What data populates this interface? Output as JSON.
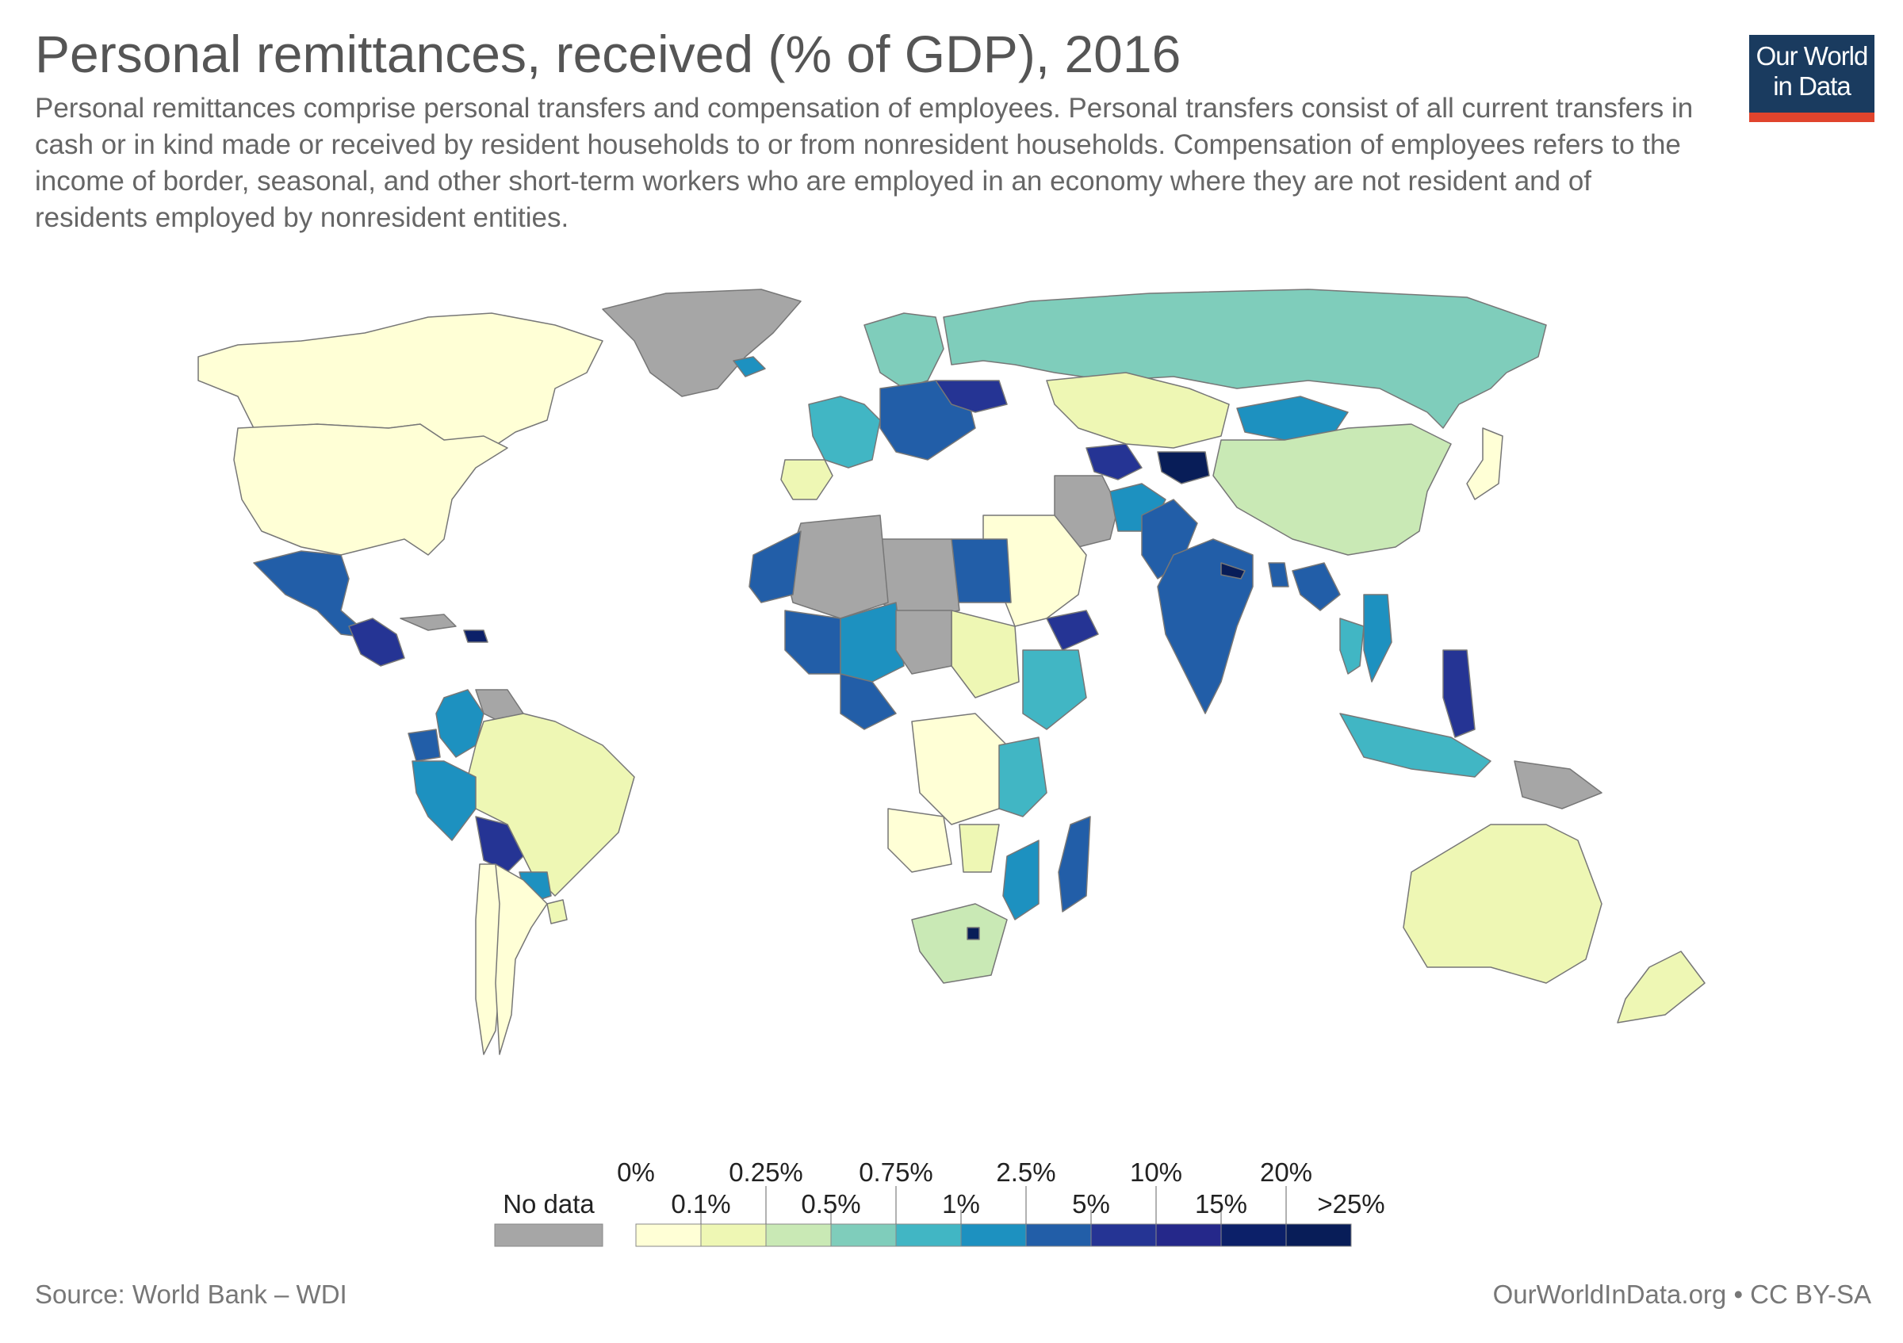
{
  "header": {
    "title": "Personal remittances, received (% of GDP), 2016",
    "subtitle": "Personal remittances comprise personal transfers and compensation of employees. Personal transfers consist of all current transfers in cash or in kind made or received by resident households to or from nonresident households. Compensation of employees refers to the income of border, seasonal, and other short-term workers who are employed in an economy where they are not resident and of residents employed by nonresident entities."
  },
  "logo": {
    "line1": "Our World",
    "line2": "in Data"
  },
  "legend": {
    "no_data_label": "No data",
    "no_data_color": "#a6a6a6",
    "top_labels": [
      "0%",
      "0.25%",
      "0.75%",
      "2.5%",
      "10%",
      "20%"
    ],
    "bottom_labels": [
      "0.1%",
      "0.5%",
      "1%",
      "5%",
      "15%",
      ">25%"
    ],
    "bins": [
      {
        "range": "0–0.1%",
        "color": "#ffffd6"
      },
      {
        "range": "0.1–0.25%",
        "color": "#eef7b4"
      },
      {
        "range": "0.25–0.5%",
        "color": "#c9e9b5"
      },
      {
        "range": "0.5–0.75%",
        "color": "#7fcdbb"
      },
      {
        "range": "0.75–1%",
        "color": "#41b6c4"
      },
      {
        "range": "1–2.5%",
        "color": "#1d91c0"
      },
      {
        "range": "2.5–5%",
        "color": "#225ea8"
      },
      {
        "range": "5–10%",
        "color": "#253494"
      },
      {
        "range": "10–15%",
        "color": "#25288a"
      },
      {
        "range": "15–20%",
        "color": "#0c2069"
      },
      {
        "range": "20–25%+",
        "color": "#081d58"
      }
    ]
  },
  "footer": {
    "source": "Source: World Bank – WDI",
    "credit": "OurWorldInData.org • CC BY-SA"
  },
  "map_regions": [
    {
      "name": "Canada",
      "color": "#ffffd6"
    },
    {
      "name": "United States",
      "color": "#ffffd6"
    },
    {
      "name": "Greenland",
      "color": "#a6a6a6"
    },
    {
      "name": "Mexico",
      "color": "#225ea8"
    },
    {
      "name": "Central America",
      "color": "#253494"
    },
    {
      "name": "Cuba",
      "color": "#a6a6a6"
    },
    {
      "name": "Haiti",
      "color": "#0c2069"
    },
    {
      "name": "Colombia",
      "color": "#1d91c0"
    },
    {
      "name": "Venezuela",
      "color": "#a6a6a6"
    },
    {
      "name": "Brazil",
      "color": "#eef7b4"
    },
    {
      "name": "Peru",
      "color": "#1d91c0"
    },
    {
      "name": "Ecuador",
      "color": "#225ea8"
    },
    {
      "name": "Bolivia",
      "color": "#253494"
    },
    {
      "name": "Paraguay",
      "color": "#1d91c0"
    },
    {
      "name": "Chile",
      "color": "#ffffd6"
    },
    {
      "name": "Argentina",
      "color": "#ffffd6"
    },
    {
      "name": "Uruguay",
      "color": "#eef7b4"
    },
    {
      "name": "Iceland",
      "color": "#1d91c0"
    },
    {
      "name": "Scandinavia",
      "color": "#7fcdbb"
    },
    {
      "name": "Russia",
      "color": "#7fcdbb"
    },
    {
      "name": "Western Europe",
      "color": "#41b6c4"
    },
    {
      "name": "Iberia",
      "color": "#eef7b4"
    },
    {
      "name": "Eastern Europe",
      "color": "#225ea8"
    },
    {
      "name": "Ukraine",
      "color": "#253494"
    },
    {
      "name": "Kazakhstan",
      "color": "#eef7b4"
    },
    {
      "name": "Mongolia",
      "color": "#1d91c0"
    },
    {
      "name": "China",
      "color": "#c9e9b5"
    },
    {
      "name": "Japan",
      "color": "#ffffd6"
    },
    {
      "name": "Central Asia",
      "color": "#253494"
    },
    {
      "name": "Tajikistan/Kyrgyzstan",
      "color": "#081d58"
    },
    {
      "name": "Iran",
      "color": "#a6a6a6"
    },
    {
      "name": "Afghanistan",
      "color": "#1d91c0"
    },
    {
      "name": "Pakistan",
      "color": "#225ea8"
    },
    {
      "name": "India",
      "color": "#225ea8"
    },
    {
      "name": "Nepal",
      "color": "#081d58"
    },
    {
      "name": "Bangladesh",
      "color": "#225ea8"
    },
    {
      "name": "Myanmar",
      "color": "#225ea8"
    },
    {
      "name": "Thailand",
      "color": "#41b6c4"
    },
    {
      "name": "Vietnam",
      "color": "#1d91c0"
    },
    {
      "name": "Philippines",
      "color": "#253494"
    },
    {
      "name": "Indonesia",
      "color": "#41b6c4"
    },
    {
      "name": "Papua New Guinea",
      "color": "#a6a6a6"
    },
    {
      "name": "Australia",
      "color": "#eef7b4"
    },
    {
      "name": "New Zealand",
      "color": "#eef7b4"
    },
    {
      "name": "Saudi Arabia",
      "color": "#ffffd6"
    },
    {
      "name": "Yemen",
      "color": "#253494"
    },
    {
      "name": "Egypt",
      "color": "#225ea8"
    },
    {
      "name": "Libya",
      "color": "#a6a6a6"
    },
    {
      "name": "Algeria",
      "color": "#a6a6a6"
    },
    {
      "name": "Morocco",
      "color": "#225ea8"
    },
    {
      "name": "Mali",
      "color": "#225ea8"
    },
    {
      "name": "Niger",
      "color": "#1d91c0"
    },
    {
      "name": "Nigeria",
      "color": "#225ea8"
    },
    {
      "name": "Sudan",
      "color": "#eef7b4"
    },
    {
      "name": "Ethiopia",
      "color": "#41b6c4"
    },
    {
      "name": "Chad",
      "color": "#a6a6a6"
    },
    {
      "name": "DR Congo",
      "color": "#ffffd6"
    },
    {
      "name": "Angola",
      "color": "#ffffd6"
    },
    {
      "name": "Kenya/Tanzania",
      "color": "#41b6c4"
    },
    {
      "name": "Mozambique",
      "color": "#1d91c0"
    },
    {
      "name": "Madagascar",
      "color": "#225ea8"
    },
    {
      "name": "South Africa",
      "color": "#c9e9b5"
    },
    {
      "name": "Lesotho",
      "color": "#081d58"
    },
    {
      "name": "Zambia",
      "color": "#eef7b4"
    }
  ]
}
